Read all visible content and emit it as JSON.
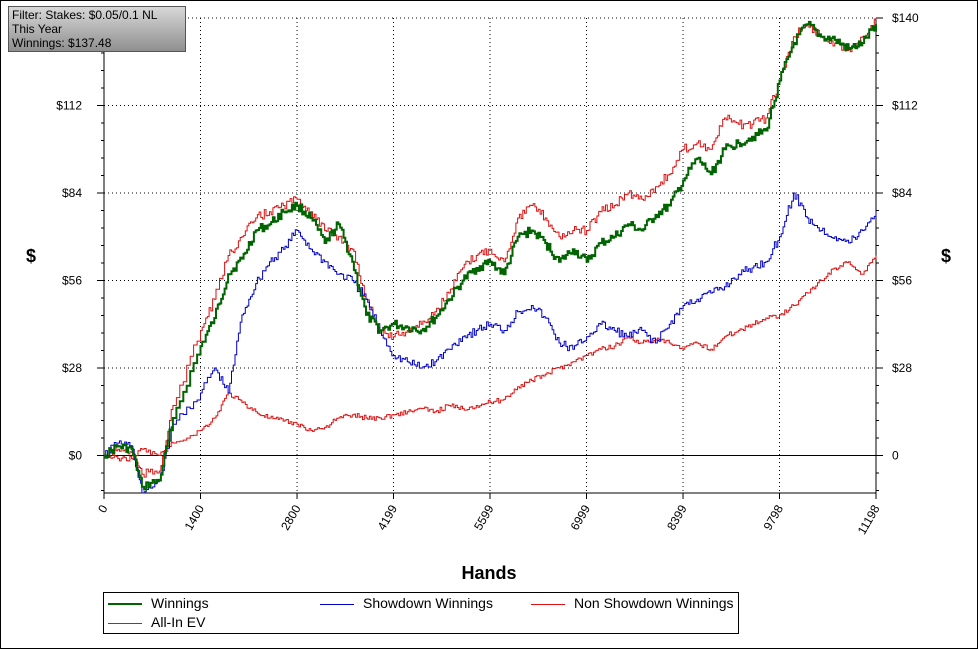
{
  "filter": {
    "line1": "Filter: Stakes: $0.05/0.1 NL",
    "line2": "This Year",
    "line3": "Winnings: $137.48"
  },
  "chart_data": {
    "type": "line",
    "xlabel": "Hands",
    "ylabel": "$",
    "xlim": [
      0,
      11198
    ],
    "ylim": [
      -12,
      140
    ],
    "x_ticks": [
      0,
      1400,
      2800,
      4199,
      5599,
      6999,
      8399,
      9798,
      11198
    ],
    "y_ticks_left": [
      "$0",
      "$28",
      "$56",
      "$84",
      "$112",
      "$140"
    ],
    "y_ticks_right": [
      "0",
      "$28",
      "$56",
      "$84",
      "$112",
      "$140"
    ],
    "y_tick_values": [
      0,
      28,
      56,
      84,
      112,
      140
    ],
    "grid": true,
    "legend_position": "bottom",
    "series": [
      {
        "name": "Winnings",
        "color": "#006400",
        "x": [
          0,
          200,
          400,
          550,
          800,
          1000,
          1400,
          1600,
          1800,
          2000,
          2200,
          2400,
          2600,
          2800,
          3000,
          3200,
          3400,
          3600,
          3800,
          4000,
          4199,
          4400,
          4600,
          4800,
          5000,
          5200,
          5400,
          5600,
          5800,
          6000,
          6200,
          6400,
          6600,
          6800,
          7000,
          7200,
          7400,
          7600,
          7800,
          8000,
          8200,
          8400,
          8600,
          8800,
          9000,
          9200,
          9400,
          9600,
          9798,
          10000,
          10200,
          10400,
          10600,
          10800,
          11000,
          11198
        ],
        "values": [
          0,
          3,
          2,
          -10,
          -8,
          12,
          35,
          44,
          58,
          63,
          72,
          74,
          78,
          80,
          76,
          68,
          74,
          62,
          45,
          40,
          42,
          41,
          40,
          44,
          50,
          56,
          60,
          62,
          58,
          70,
          72,
          68,
          62,
          66,
          62,
          68,
          70,
          74,
          72,
          77,
          80,
          88,
          95,
          90,
          98,
          100,
          102,
          104,
          120,
          132,
          138,
          134,
          133,
          130,
          132,
          138
        ]
      },
      {
        "name": "Showdown Winnings",
        "color": "#0000cc",
        "x": [
          0,
          200,
          400,
          550,
          800,
          1000,
          1400,
          1600,
          1800,
          2000,
          2200,
          2400,
          2600,
          2800,
          3000,
          3200,
          3400,
          3600,
          3800,
          4000,
          4199,
          4400,
          4600,
          4800,
          5000,
          5200,
          5400,
          5600,
          5800,
          6000,
          6200,
          6400,
          6600,
          6800,
          7000,
          7200,
          7400,
          7600,
          7800,
          8000,
          8200,
          8400,
          8600,
          8800,
          9000,
          9200,
          9400,
          9600,
          9798,
          10000,
          10200,
          10400,
          10600,
          10800,
          11000,
          11198
        ],
        "values": [
          0,
          4,
          3,
          -12,
          -8,
          10,
          20,
          28,
          20,
          45,
          55,
          62,
          66,
          72,
          66,
          62,
          58,
          56,
          50,
          40,
          32,
          30,
          28,
          30,
          34,
          38,
          40,
          42,
          40,
          46,
          48,
          44,
          36,
          34,
          38,
          42,
          40,
          38,
          40,
          36,
          42,
          48,
          50,
          52,
          54,
          58,
          60,
          62,
          70,
          84,
          76,
          72,
          70,
          68,
          72,
          78
        ]
      },
      {
        "name": "Non Showdown Winnings",
        "color": "#dd1111",
        "x": [
          0,
          200,
          400,
          550,
          800,
          1000,
          1400,
          1600,
          1800,
          2000,
          2200,
          2400,
          2600,
          2800,
          3000,
          3200,
          3400,
          3600,
          3800,
          4000,
          4199,
          4400,
          4600,
          4800,
          5000,
          5200,
          5400,
          5600,
          5800,
          6000,
          6200,
          6400,
          6600,
          6800,
          7000,
          7200,
          7400,
          7600,
          7800,
          8000,
          8200,
          8400,
          8600,
          8800,
          9000,
          9200,
          9400,
          9600,
          9798,
          10000,
          10200,
          10400,
          10600,
          10800,
          11000,
          11198
        ],
        "values": [
          0,
          -1,
          -1,
          2,
          0,
          4,
          8,
          12,
          20,
          17,
          14,
          12,
          11,
          10,
          8,
          9,
          12,
          13,
          12,
          12,
          13,
          14,
          15,
          14,
          16,
          15,
          16,
          17,
          18,
          22,
          24,
          26,
          28,
          30,
          32,
          34,
          35,
          38,
          36,
          37,
          36,
          34,
          36,
          34,
          38,
          40,
          42,
          44,
          45,
          48,
          52,
          56,
          60,
          62,
          58,
          64
        ]
      },
      {
        "name": "All-In EV",
        "color": "#dd1111",
        "x": [
          0,
          200,
          400,
          550,
          800,
          1000,
          1400,
          1600,
          1800,
          2000,
          2200,
          2400,
          2600,
          2800,
          3000,
          3200,
          3400,
          3600,
          3800,
          4000,
          4199,
          4400,
          4600,
          4800,
          5000,
          5200,
          5400,
          5600,
          5800,
          6000,
          6200,
          6400,
          6600,
          6800,
          7000,
          7200,
          7400,
          7600,
          7800,
          8000,
          8200,
          8400,
          8600,
          8800,
          9000,
          9200,
          9400,
          9600,
          9798,
          10000,
          10200,
          10400,
          10600,
          10800,
          11000,
          11198
        ],
        "values": [
          0,
          2,
          1,
          -6,
          -5,
          16,
          40,
          50,
          64,
          70,
          76,
          78,
          80,
          82,
          78,
          72,
          70,
          66,
          50,
          40,
          38,
          40,
          42,
          46,
          52,
          60,
          64,
          66,
          62,
          76,
          80,
          76,
          70,
          72,
          72,
          78,
          80,
          84,
          82,
          86,
          90,
          98,
          100,
          98,
          108,
          106,
          106,
          108,
          120,
          134,
          138,
          134,
          132,
          130,
          134,
          140
        ]
      }
    ]
  }
}
